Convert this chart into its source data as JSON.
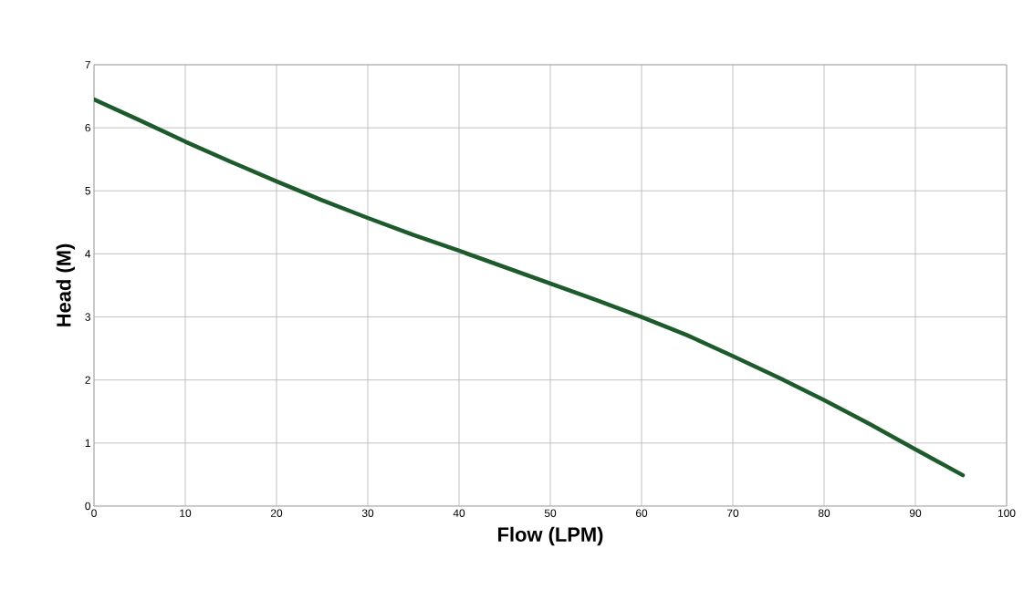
{
  "chart_data": {
    "type": "line",
    "xlabel": "Flow (LPM)",
    "ylabel": "Head (M)",
    "x": [
      0,
      5,
      10,
      15,
      20,
      25,
      30,
      35,
      40,
      45,
      50,
      55,
      60,
      65,
      70,
      75,
      80,
      85,
      90,
      95.2
    ],
    "series": [
      {
        "color": "#1e5b2c",
        "values": [
          6.45,
          6.12,
          5.78,
          5.46,
          5.15,
          4.85,
          4.57,
          4.3,
          4.05,
          3.79,
          3.53,
          3.27,
          3.0,
          2.71,
          2.38,
          2.04,
          1.68,
          1.3,
          0.9,
          0.49
        ]
      }
    ],
    "xlim": [
      0,
      100
    ],
    "ylim": [
      0,
      7
    ],
    "xticks": [
      0,
      10,
      20,
      30,
      40,
      50,
      60,
      70,
      80,
      90,
      100
    ],
    "yticks": [
      0,
      1,
      2,
      3,
      4,
      5,
      6,
      7
    ],
    "grid": true,
    "marker": "none",
    "line_style": "solid"
  }
}
